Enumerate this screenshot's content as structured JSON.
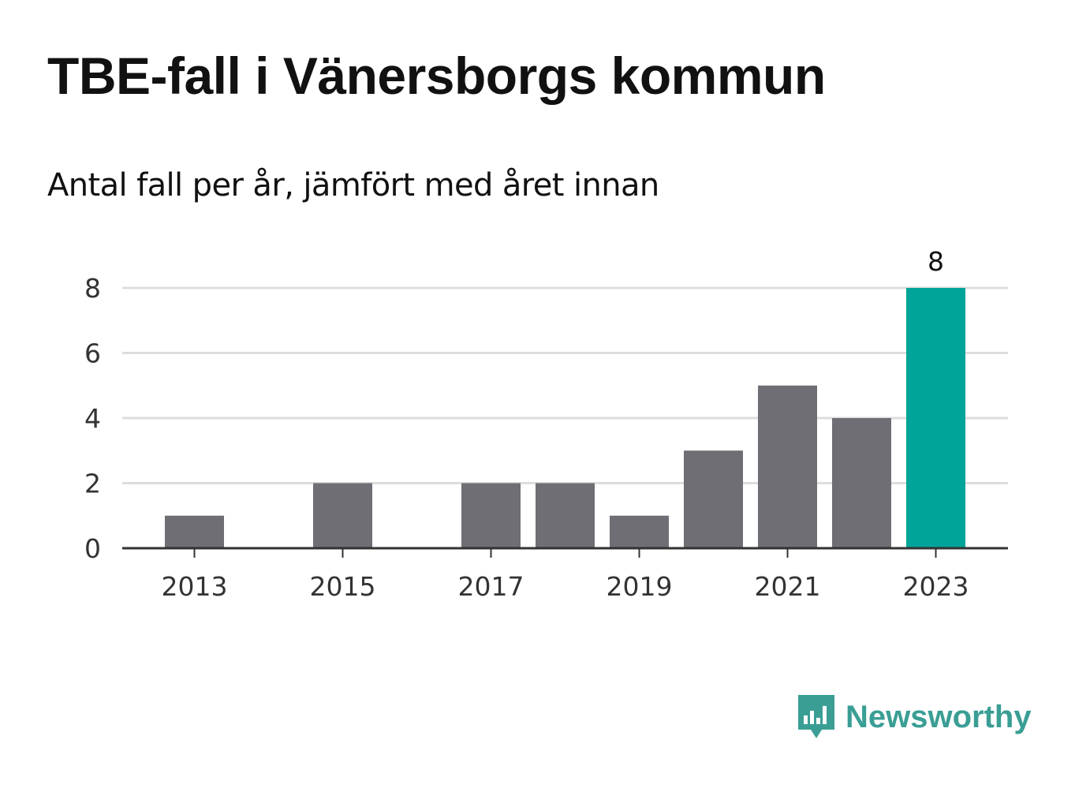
{
  "title": "TBE-fall i Vänersborgs kommun",
  "subtitle": "Antal fall per år, jämfört med året innan",
  "brand": {
    "name": "Newsworthy",
    "icon": "newsworthy-logo-icon",
    "color": "#3a9e94"
  },
  "colors": {
    "bar": "#6f6e74",
    "highlight": "#00a498",
    "grid": "#dddddd",
    "axis": "#333333"
  },
  "chart_data": {
    "type": "bar",
    "categories": [
      "2013",
      "2014",
      "2015",
      "2016",
      "2017",
      "2018",
      "2019",
      "2020",
      "2021",
      "2022",
      "2023"
    ],
    "values": [
      1,
      0,
      2,
      0,
      2,
      2,
      1,
      3,
      5,
      4,
      8
    ],
    "highlight_index": 10,
    "highlight_label": "8",
    "x_tick_labels": [
      "2013",
      "2015",
      "2017",
      "2019",
      "2021",
      "2023"
    ],
    "y_ticks": [
      0,
      2,
      4,
      6,
      8
    ],
    "ylim": [
      0,
      8
    ],
    "xlabel": "",
    "ylabel": "",
    "grid": true,
    "legend": false
  }
}
